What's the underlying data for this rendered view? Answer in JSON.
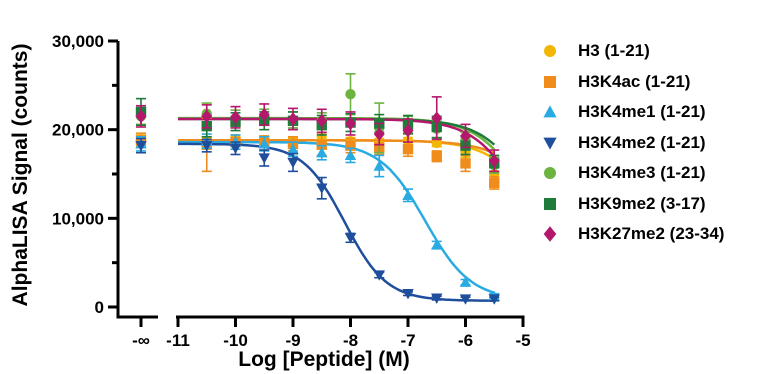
{
  "chart_data": {
    "type": "scatter",
    "title": "",
    "xlabel": "Log [Peptide] (M)",
    "ylabel": "AlphaLISA Signal (counts)",
    "xlim": [
      -11,
      -5
    ],
    "ylim": [
      0,
      30000
    ],
    "x_ticks": [
      "-∞",
      "-11",
      "-10",
      "-9",
      "-8",
      "-7",
      "-6",
      "-5"
    ],
    "y_ticks": [
      "0",
      "10,000",
      "20,000",
      "30,000"
    ],
    "y_tick_values": [
      0,
      10000,
      20000,
      30000
    ],
    "x_tick_values": [
      -11,
      -10,
      -9,
      -8,
      -7,
      -6,
      -5
    ],
    "neg_inf_tick_label": "-∞",
    "grid": false,
    "legend_position": "right",
    "x": [
      -10.5,
      -10,
      -9.5,
      -9,
      -8.5,
      -8,
      -7.5,
      -7,
      -6.5,
      -6,
      -5.5
    ],
    "series": [
      {
        "name": "H3 (1-21)",
        "color": "#F2B705",
        "marker": "circle",
        "baseline": 18800,
        "baseline_err": 600,
        "values": [
          18700,
          18800,
          18600,
          18700,
          18800,
          18700,
          18600,
          18700,
          18500,
          17500,
          15000
        ],
        "errors": [
          400,
          400,
          400,
          400,
          400,
          400,
          400,
          400,
          400,
          600,
          800
        ],
        "fit": {
          "top": 18800,
          "bottom": 0,
          "logIC50": -4.6,
          "hill": 1
        }
      },
      {
        "name": "H3K4ac (1-21)",
        "color": "#F08C1B",
        "marker": "square",
        "baseline": 18800,
        "baseline_err": 800,
        "values": [
          18300,
          18600,
          18500,
          18400,
          18300,
          18200,
          18000,
          17800,
          17000,
          16200,
          14000
        ],
        "errors": [
          3000,
          800,
          800,
          800,
          1200,
          800,
          800,
          800,
          600,
          900,
          700
        ],
        "fit": {
          "top": 18800,
          "bottom": 0,
          "logIC50": -4.3,
          "hill": 0.9
        }
      },
      {
        "name": "H3K4me1 (1-21)",
        "color": "#29ABE2",
        "marker": "triangle",
        "baseline": 18400,
        "baseline_err": 800,
        "values": [
          18700,
          18600,
          18400,
          17800,
          17400,
          17100,
          15900,
          12600,
          7000,
          2800,
          1200
        ],
        "errors": [
          800,
          800,
          800,
          800,
          800,
          800,
          1200,
          700,
          400,
          300,
          300
        ],
        "fit": {
          "top": 18600,
          "bottom": 800,
          "logIC50": -6.7,
          "hill": 1.1
        }
      },
      {
        "name": "H3K4me2 (1-21)",
        "color": "#1F4E9C",
        "marker": "triangle-down",
        "baseline": 18200,
        "baseline_err": 800,
        "values": [
          18200,
          17900,
          16800,
          16300,
          13400,
          7800,
          3600,
          1500,
          1000,
          900,
          900
        ],
        "errors": [
          700,
          700,
          900,
          1000,
          1200,
          500,
          300,
          200,
          200,
          200,
          200
        ],
        "fit": {
          "top": 18400,
          "bottom": 700,
          "logIC50": -8.1,
          "hill": 1.2
        }
      },
      {
        "name": "H3K4me3 (1-21)",
        "color": "#6DB33F",
        "marker": "circle",
        "baseline": 21500,
        "baseline_err": 900,
        "values": [
          21800,
          21300,
          21400,
          21100,
          21000,
          24000,
          20200,
          20500,
          20100,
          18800,
          16000
        ],
        "errors": [
          1200,
          900,
          900,
          900,
          900,
          2300,
          2800,
          1000,
          1000,
          900,
          900
        ],
        "fit": {
          "top": 21300,
          "bottom": 0,
          "logIC50": -4.8,
          "hill": 1
        }
      },
      {
        "name": "H3K9me2 (3-17)",
        "color": "#1E7B3A",
        "marker": "square",
        "baseline": 22000,
        "baseline_err": 1500,
        "values": [
          20400,
          20900,
          21000,
          21000,
          20500,
          20800,
          20700,
          20600,
          20300,
          18200,
          16200
        ],
        "errors": [
          1200,
          1000,
          1000,
          1000,
          1100,
          1000,
          1000,
          1000,
          1200,
          1000,
          900
        ],
        "fit": {
          "top": 21200,
          "bottom": 0,
          "logIC50": -4.7,
          "hill": 1
        }
      },
      {
        "name": "H3K27me2 (23-34)",
        "color": "#B5176C",
        "marker": "diamond",
        "baseline": 21500,
        "baseline_err": 1200,
        "values": [
          21500,
          21400,
          21700,
          21200,
          21000,
          20700,
          19500,
          19900,
          21300,
          19300,
          16500
        ],
        "errors": [
          1300,
          1200,
          1200,
          1200,
          1300,
          1300,
          1200,
          1300,
          2400,
          1300,
          1200
        ],
        "fit": {
          "top": 21200,
          "bottom": 0,
          "logIC50": -4.9,
          "hill": 1
        }
      }
    ]
  }
}
